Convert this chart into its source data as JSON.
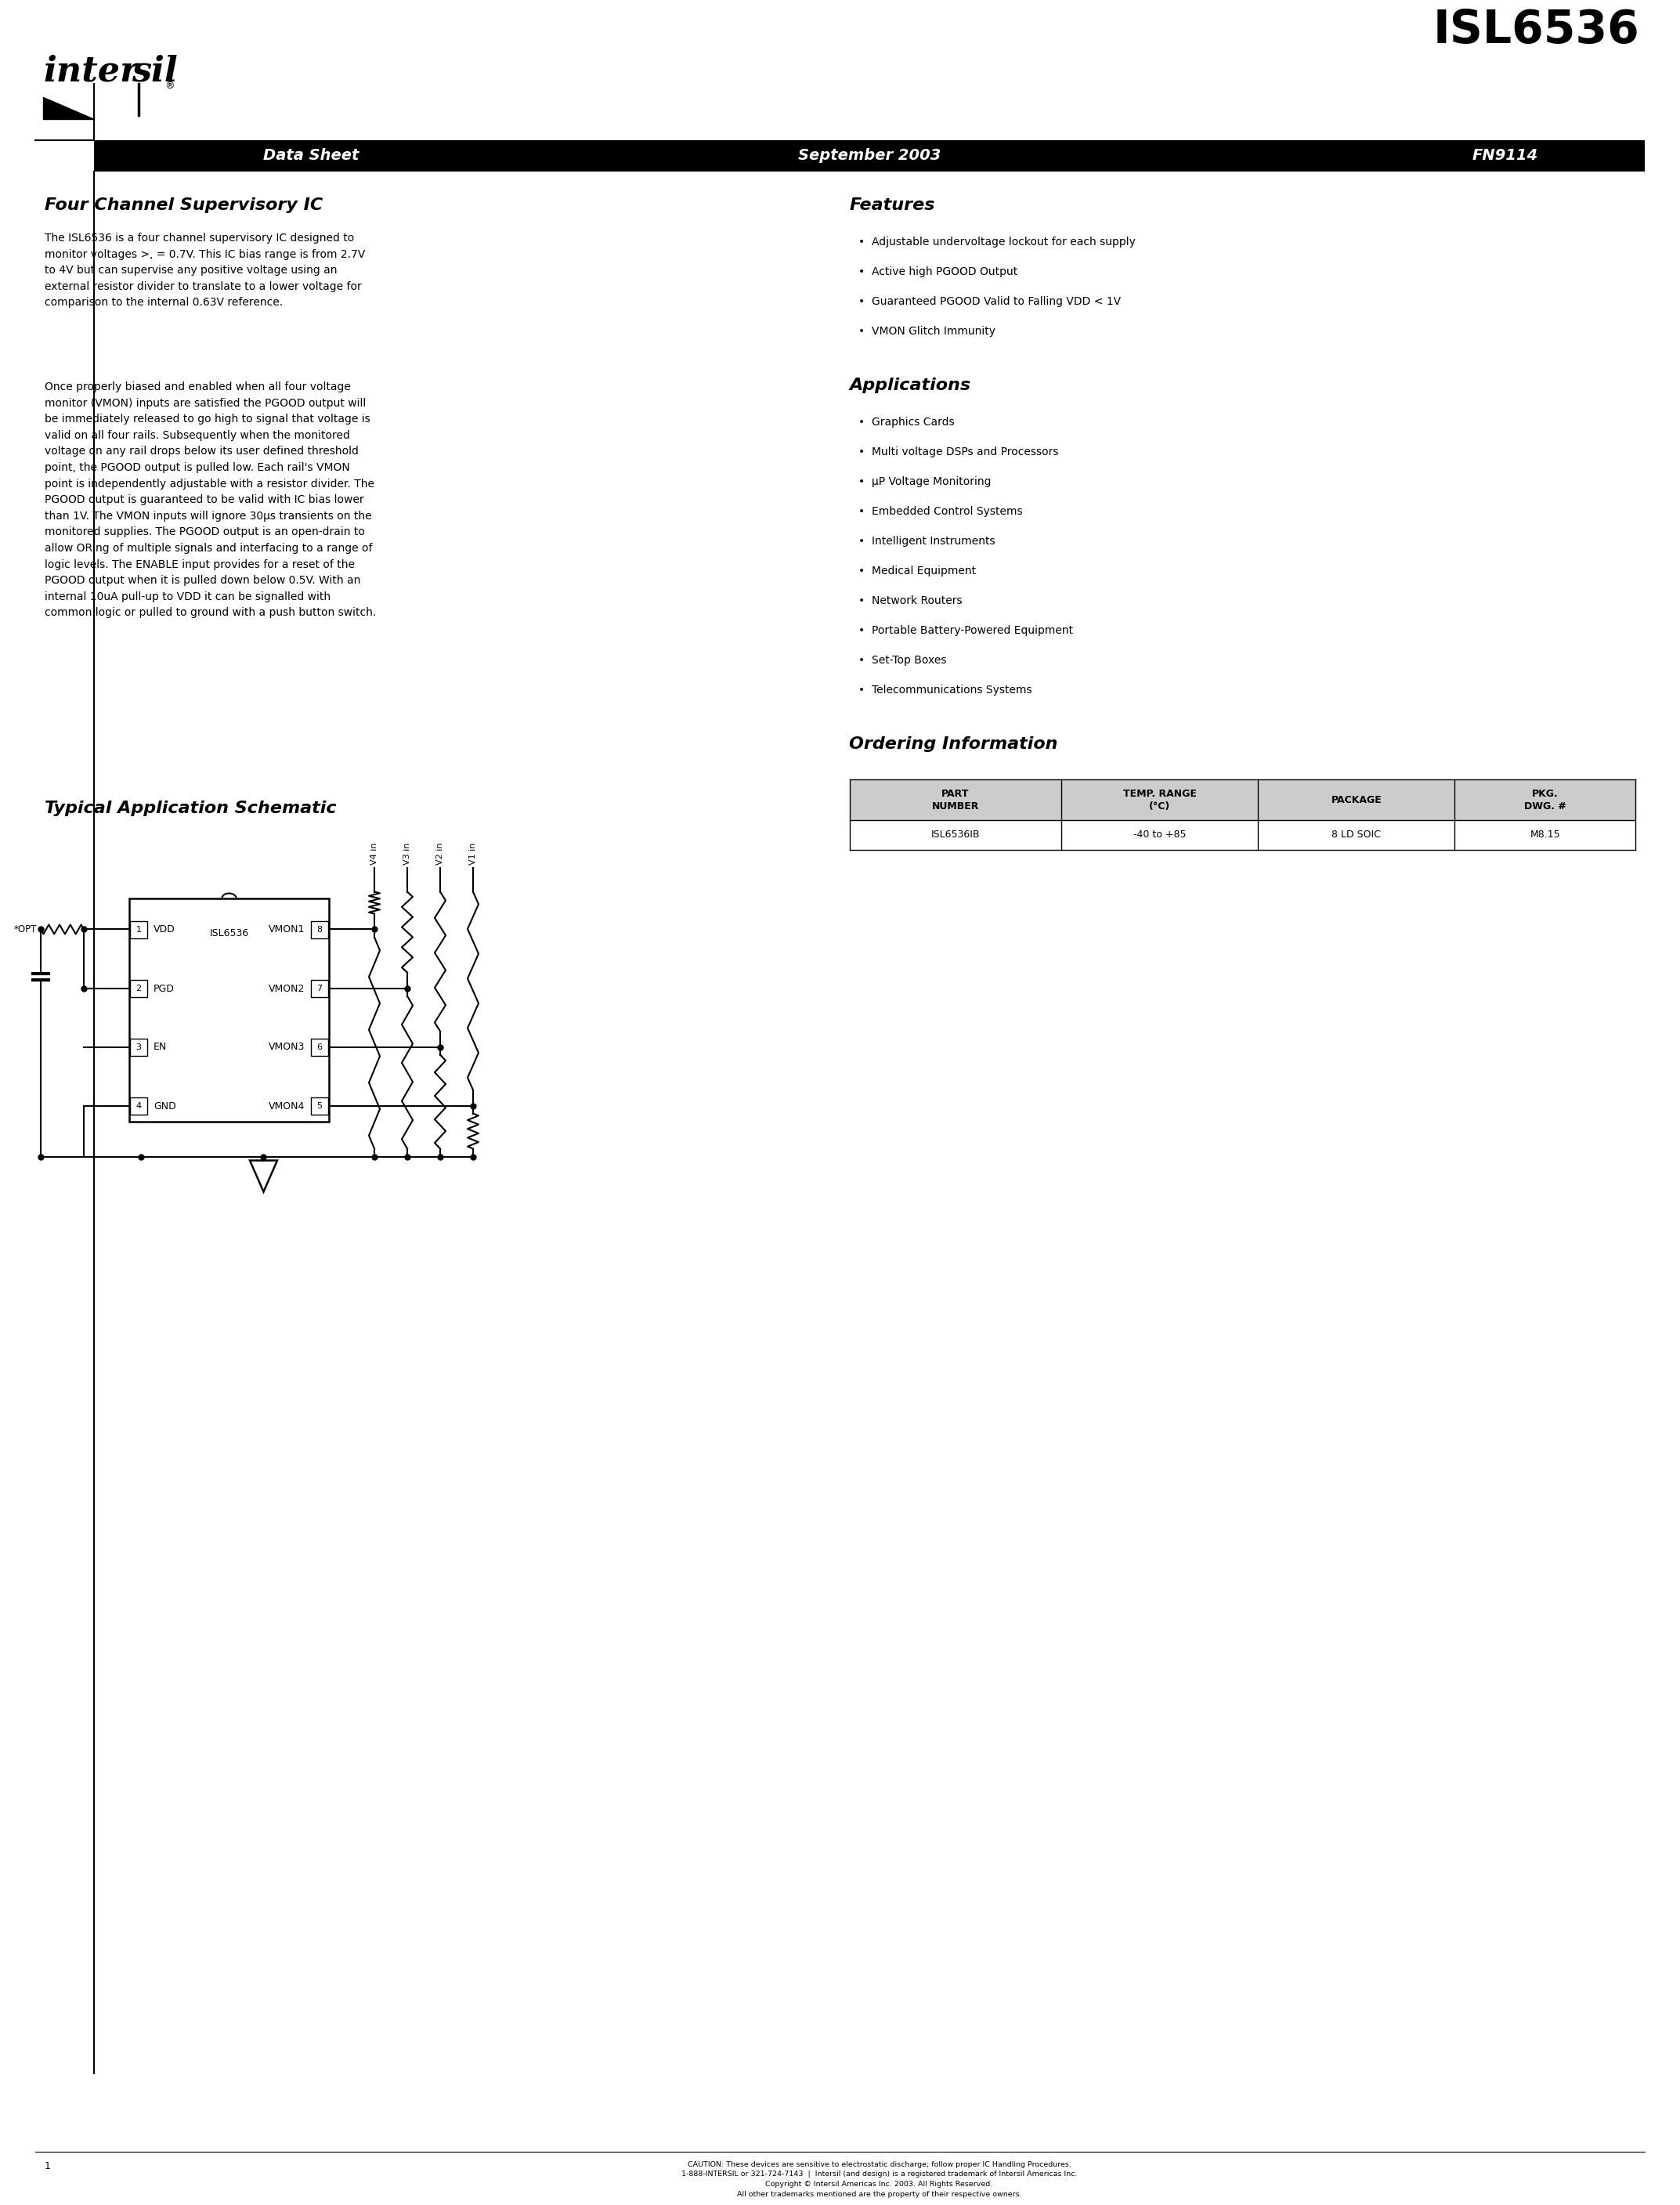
{
  "page_width": 21.25,
  "page_height": 27.5,
  "bg_color": "#ffffff",
  "title_chip": "ISL6536",
  "header_texts": [
    "Data Sheet",
    "September 2003",
    "FN9114"
  ],
  "section_title_left": "Four Channel Supervisory IC",
  "para1": "The ISL6536 is a four channel supervisory IC designed to\nmonitor voltages >, = 0.7V. This IC bias range is from 2.7V\nto 4V but can supervise any positive voltage using an\nexternal resistor divider to translate to a lower voltage for\ncomparison to the internal 0.63V reference.",
  "para2": "Once properly biased and enabled when all four voltage\nmonitor (VMON) inputs are satisfied the PGOOD output will\nbe immediately released to go high to signal that voltage is\nvalid on all four rails. Subsequently when the monitored\nvoltage on any rail drops below its user defined threshold\npoint, the PGOOD output is pulled low. Each rail's VMON\npoint is independently adjustable with a resistor divider. The\nPGOOD output is guaranteed to be valid with IC bias lower\nthan 1V. The VMON inputs will ignore 30μs transients on the\nmonitored supplies. The PGOOD output is an open-drain to\nallow ORing of multiple signals and interfacing to a range of\nlogic levels. The ENABLE input provides for a reset of the\nPGOOD output when it is pulled down below 0.5V. With an\ninternal 10uA pull-up to VDD it can be signalled with\ncommon logic or pulled to ground with a push button switch.",
  "schematic_title": "Typical Application Schematic",
  "features_title": "Features",
  "features": [
    "Adjustable undervoltage lockout for each supply",
    "Active high PGOOD Output",
    "Guaranteed PGOOD Valid to Falling VDD < 1V",
    "VMON Glitch Immunity"
  ],
  "applications_title": "Applications",
  "applications": [
    "Graphics Cards",
    "Multi voltage DSPs and Processors",
    "μP Voltage Monitoring",
    "Embedded Control Systems",
    "Intelligent Instruments",
    "Medical Equipment",
    "Network Routers",
    "Portable Battery-Powered Equipment",
    "Set-Top Boxes",
    "Telecommunications Systems"
  ],
  "ordering_title": "Ordering Information",
  "ordering_headers": [
    "PART\nNUMBER",
    "TEMP. RANGE\n(°C)",
    "PACKAGE",
    "PKG.\nDWG. #"
  ],
  "ordering_row": [
    "ISL6536IB",
    "-40 to +85",
    "8 LD SOIC",
    "M8.15"
  ],
  "footer_page": "1",
  "footer_caution": "CAUTION: These devices are sensitive to electrostatic discharge; follow proper IC Handling Procedures.\n1-888-INTERSIL or 321-724-7143  |  Intersil (and design) is a registered trademark of Intersil Americas Inc.\nCopyright © Intersil Americas Inc. 2003. All Rights Reserved.\nAll other trademarks mentioned are the property of their respective owners."
}
